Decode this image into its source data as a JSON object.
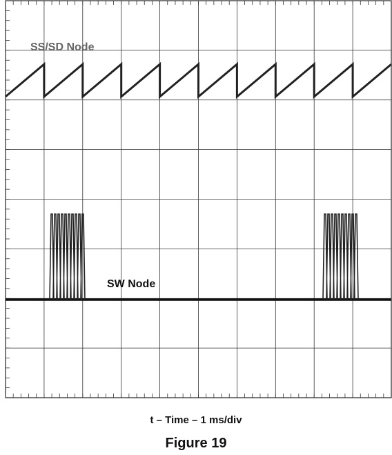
{
  "chart_data": {
    "type": "line",
    "title": "Figure 19",
    "xlabel": "t – Time – 1 ms/div",
    "annotations": [
      "SS/SD Node",
      "SW Node"
    ]
  }
}
